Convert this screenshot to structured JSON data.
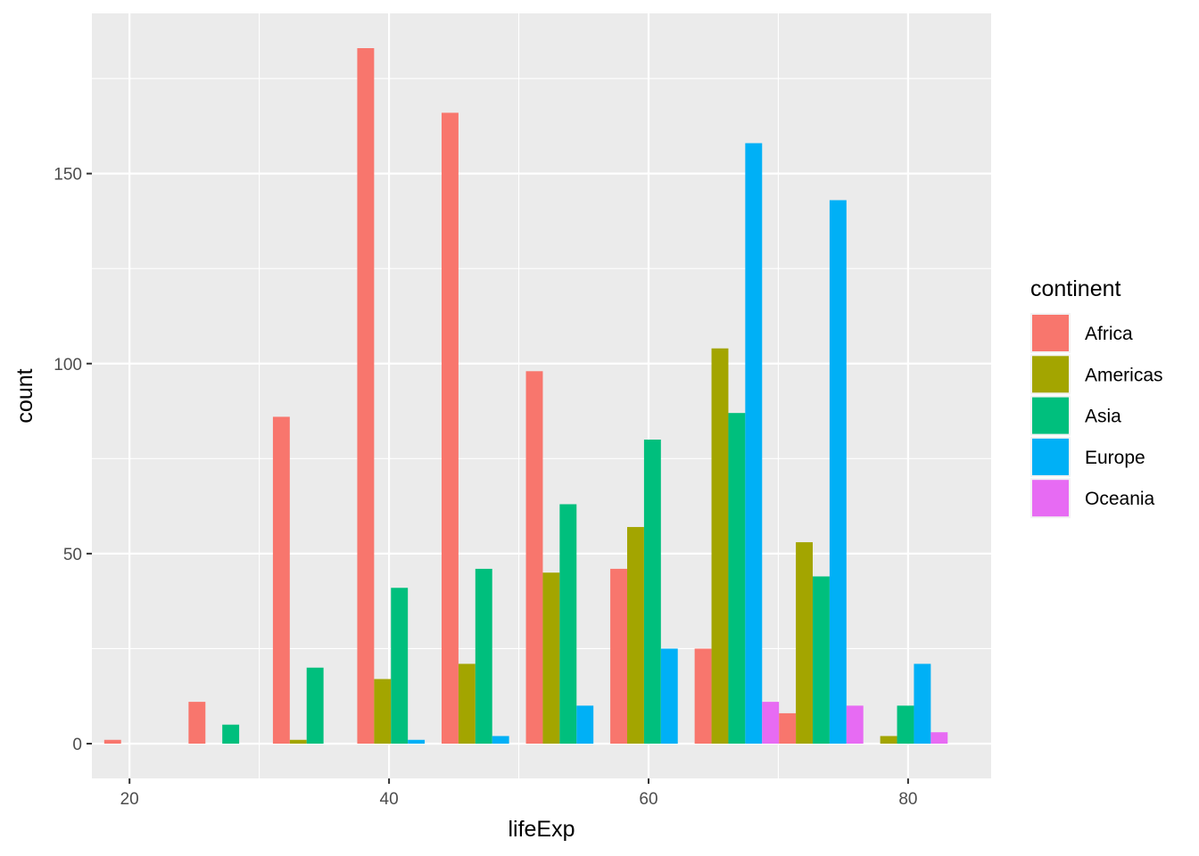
{
  "chart_data": {
    "type": "bar",
    "xlabel": "lifeExp",
    "ylabel": "count",
    "x_ticks": [
      20,
      40,
      60,
      80
    ],
    "y_ticks": [
      0,
      50,
      100,
      150
    ],
    "xlim": [
      17.1,
      86.4
    ],
    "ylim": [
      -9.15,
      192.15
    ],
    "grid": true,
    "legend_position": "right",
    "legend_title": "continent",
    "bin_width": 6.5,
    "bin_centers": [
      21.3,
      27.8,
      34.3,
      40.8,
      47.3,
      53.8,
      60.3,
      66.8,
      73.3,
      79.8,
      86.3
    ],
    "series": [
      {
        "name": "Africa",
        "color": "#F8766D",
        "values": [
          1,
          11,
          86,
          183,
          166,
          98,
          46,
          25,
          8,
          0,
          0
        ]
      },
      {
        "name": "Americas",
        "color": "#A3A500",
        "values": [
          0,
          0,
          1,
          17,
          21,
          45,
          57,
          104,
          53,
          2,
          0
        ]
      },
      {
        "name": "Asia",
        "color": "#00BF7D",
        "values": [
          0,
          5,
          20,
          41,
          46,
          63,
          80,
          87,
          44,
          10,
          0
        ]
      },
      {
        "name": "Europe",
        "color": "#00B0F6",
        "values": [
          0,
          0,
          0,
          1,
          2,
          10,
          25,
          158,
          143,
          21,
          0
        ]
      },
      {
        "name": "Oceania",
        "color": "#E76BF3",
        "values": [
          0,
          0,
          0,
          0,
          0,
          0,
          0,
          11,
          10,
          3,
          0
        ]
      }
    ]
  }
}
